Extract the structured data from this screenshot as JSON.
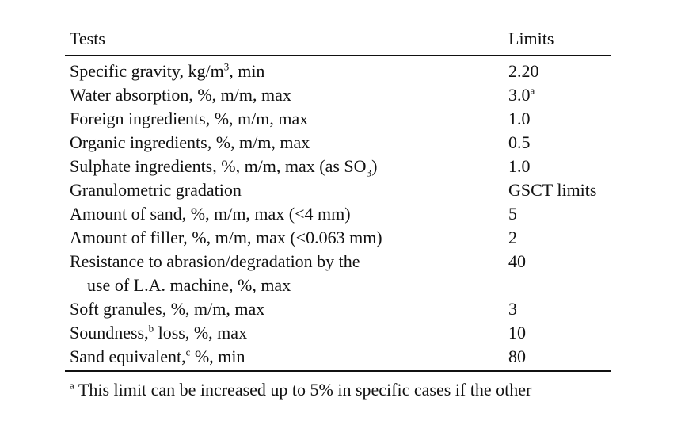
{
  "table": {
    "header": {
      "test": "Tests",
      "limit": "Limits"
    },
    "rows": [
      {
        "test": [
          [
            "Specific gravity, kg/m",
            {
              "sup": "3"
            },
            ", min"
          ]
        ],
        "limit": [
          [
            "2.20"
          ]
        ]
      },
      {
        "test": [
          [
            "Water absorption, %, m/m, max"
          ]
        ],
        "limit": [
          [
            "3.0",
            {
              "sup": "a"
            }
          ]
        ]
      },
      {
        "test": [
          [
            "Foreign ingredients, %, m/m, max"
          ]
        ],
        "limit": [
          [
            "1.0"
          ]
        ]
      },
      {
        "test": [
          [
            "Organic ingredients, %, m/m, max"
          ]
        ],
        "limit": [
          [
            "0.5"
          ]
        ]
      },
      {
        "test": [
          [
            "Sulphate ingredients, %, m/m, max (as SO",
            {
              "sub": "3"
            },
            ")"
          ]
        ],
        "limit": [
          [
            "1.0"
          ]
        ]
      },
      {
        "test": [
          [
            "Granulometric gradation"
          ]
        ],
        "limit": [
          [
            "GSCT limits"
          ]
        ]
      },
      {
        "test": [
          [
            "Amount of sand, %, m/m, max (<4 mm)"
          ]
        ],
        "limit": [
          [
            "5"
          ]
        ]
      },
      {
        "test": [
          [
            "Amount of filler, %, m/m, max (<0.063 mm)"
          ]
        ],
        "limit": [
          [
            "2"
          ]
        ]
      },
      {
        "test": [
          [
            "Resistance to abrasion/degradation by the"
          ],
          [
            "use of L.A. machine, %, max"
          ]
        ],
        "limit": [
          [
            "40"
          ]
        ]
      },
      {
        "test": [
          [
            "Soft granules, %, m/m, max"
          ]
        ],
        "limit": [
          [
            "3"
          ]
        ]
      },
      {
        "test": [
          [
            "Soundness,",
            {
              "sup": "b"
            },
            " loss, %, max"
          ]
        ],
        "limit": [
          [
            "10"
          ]
        ]
      },
      {
        "test": [
          [
            "Sand equivalent,",
            {
              "sup": "c"
            },
            " %, min"
          ]
        ],
        "limit": [
          [
            "80"
          ]
        ]
      }
    ],
    "footnote": {
      "mark": "a",
      "text": "This limit can be increased up to 5% in specific cases if the other"
    }
  }
}
